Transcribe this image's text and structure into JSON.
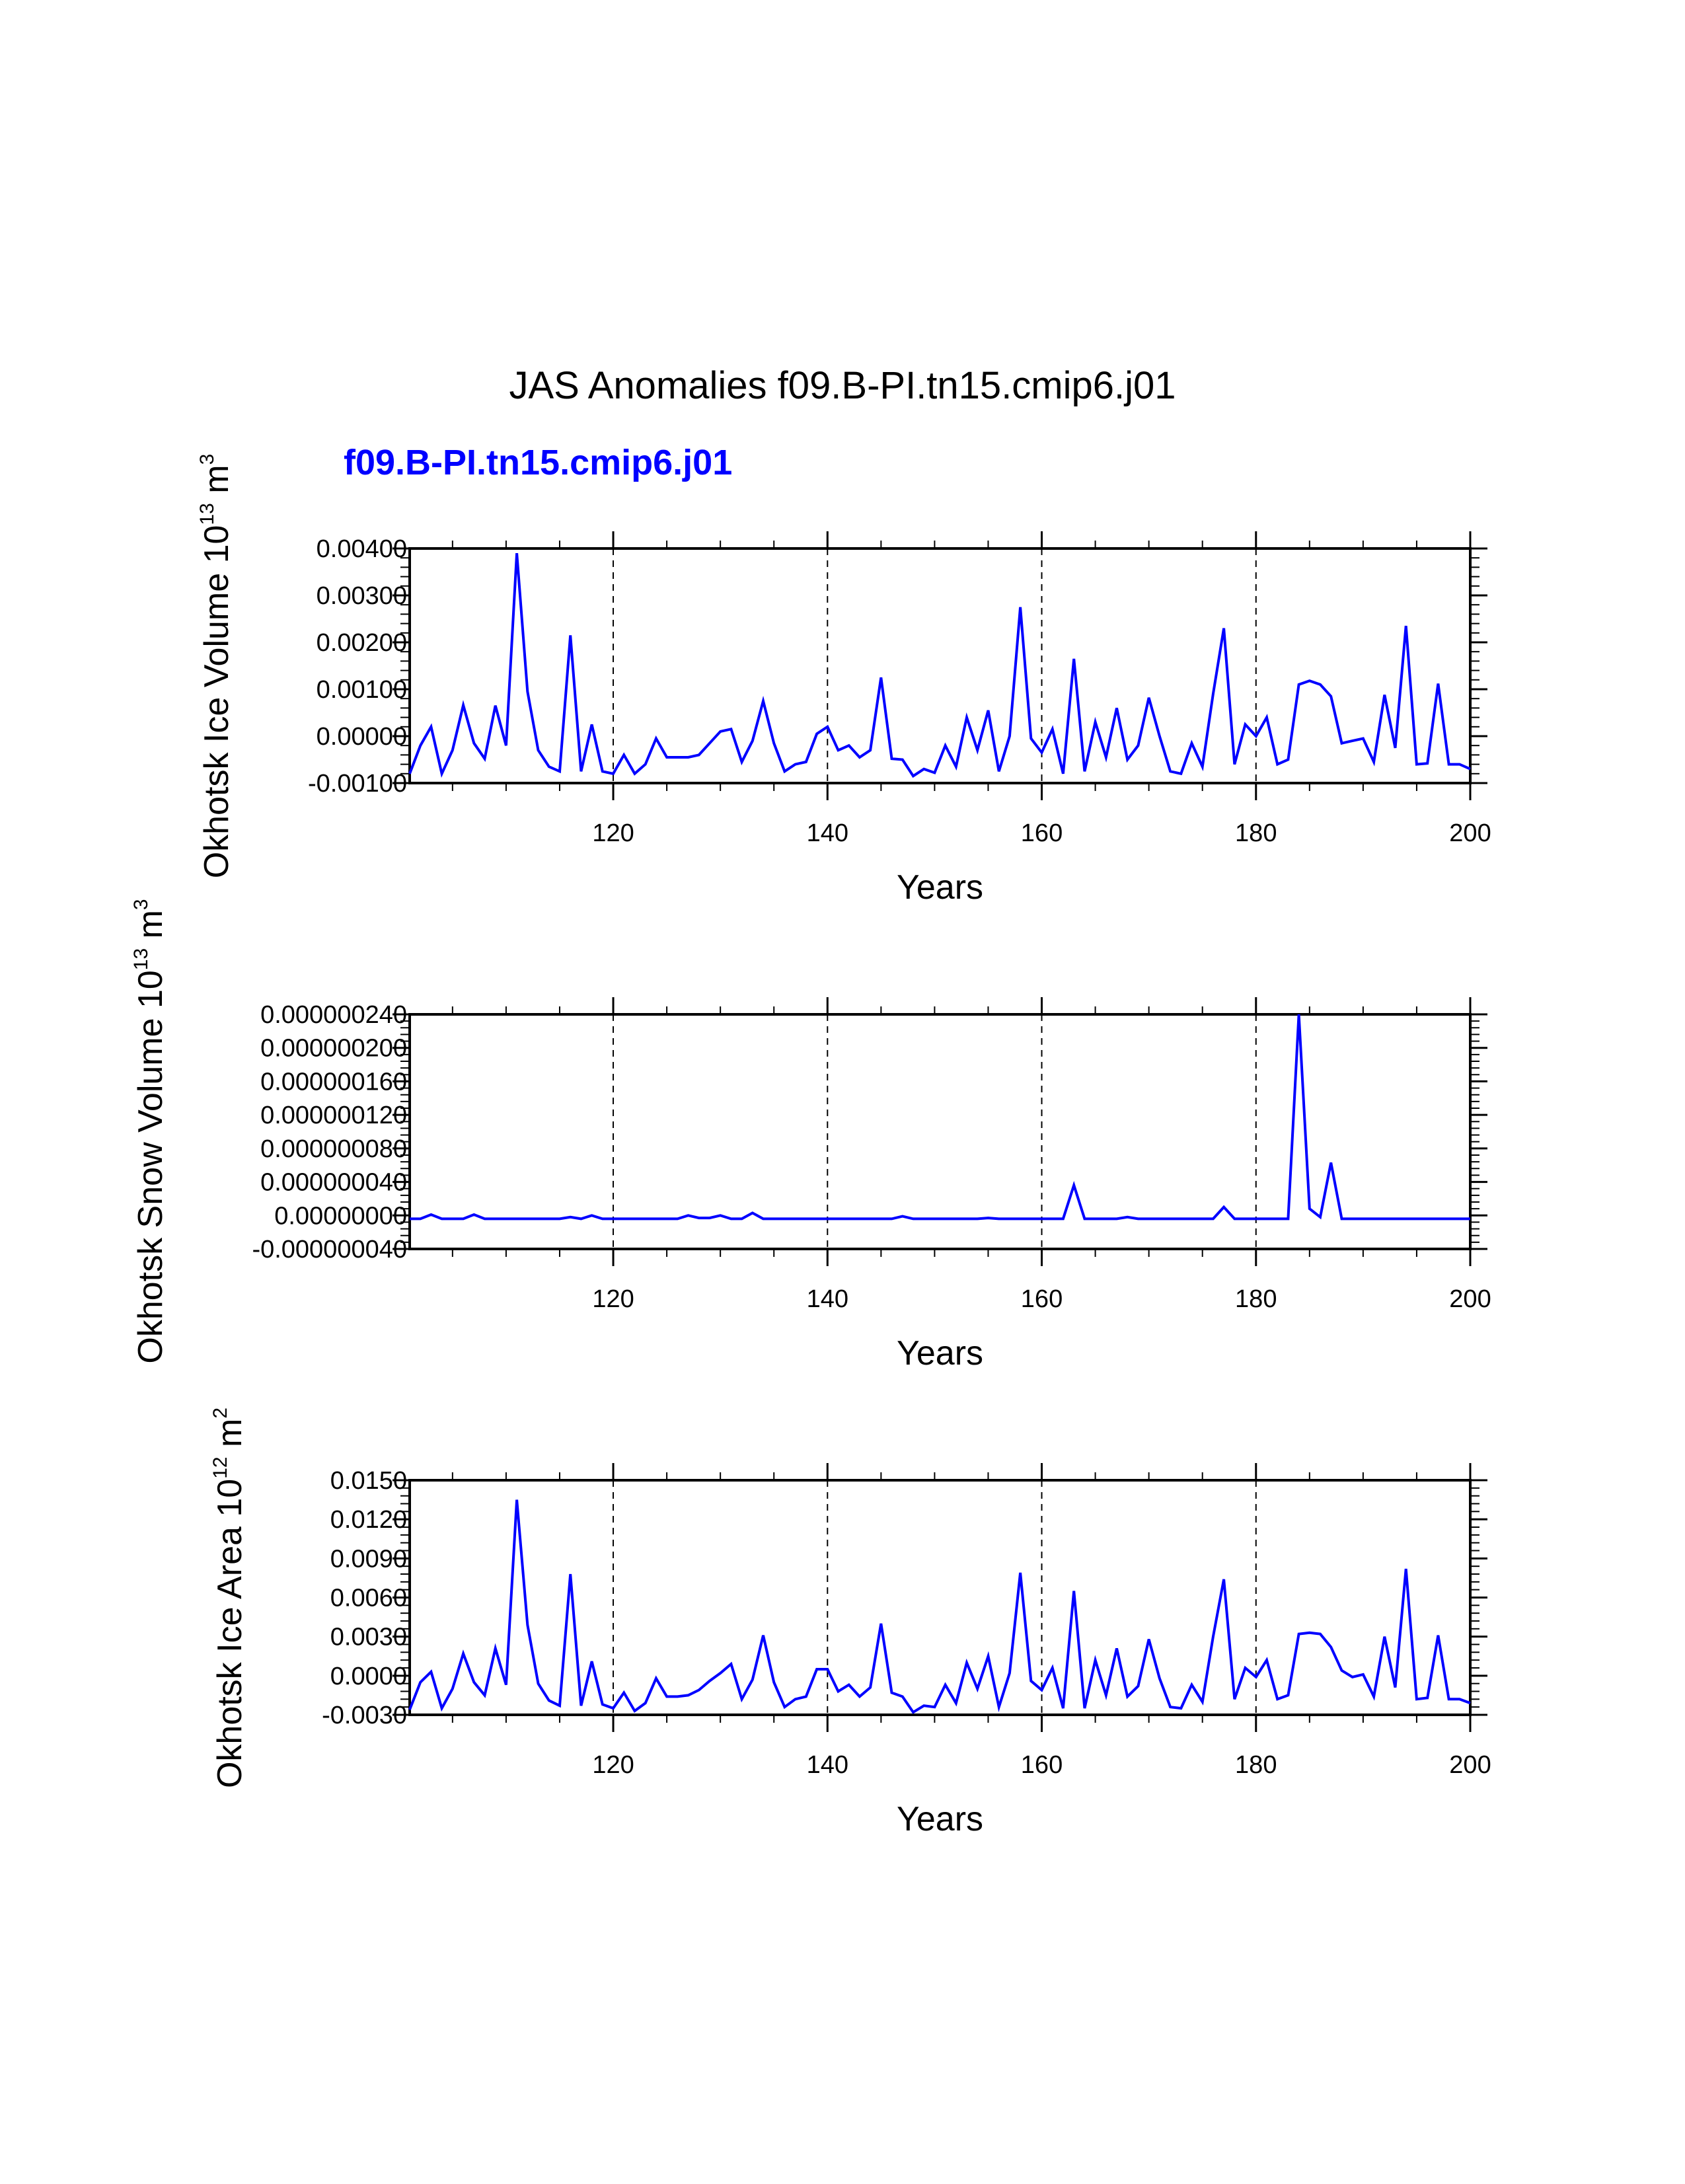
{
  "page_title": "JAS Anomalies f09.B-PI.tn15.cmip6.j01",
  "colors": {
    "series": "#0000ff",
    "axis": "#000000",
    "grid": "#000000",
    "background": "#ffffff"
  },
  "chart_data": [
    {
      "type": "line",
      "title": "f09.B-PI.tn15.cmip6.j01",
      "ylabel": {
        "main": "Okhotsk Ice Volume 10",
        "exp": "13",
        "unit": " m",
        "unit_exp": "3"
      },
      "xlabel": "Years",
      "xlim": [
        101,
        200
      ],
      "ylim": [
        -0.001,
        0.004
      ],
      "yticks": [
        "0.00400",
        "0.00300",
        "0.00200",
        "0.00100",
        "0.00000",
        "-0.00100"
      ],
      "ytick_values": [
        0.004,
        0.003,
        0.002,
        0.001,
        0.0,
        -0.001
      ],
      "xticks": [
        "120",
        "140",
        "160",
        "180",
        "200"
      ],
      "xtick_values": [
        120,
        140,
        160,
        180,
        200
      ],
      "vgrid": [
        120,
        140,
        160,
        180
      ],
      "series": [
        {
          "name": "f09.B-PI.tn15.cmip6.j01",
          "x_start": 101,
          "values": [
            -0.0008,
            -0.0002,
            0.0002,
            -0.0008,
            -0.0003,
            0.00066,
            -0.00015,
            -0.00048,
            0.00065,
            -0.0002,
            0.0039,
            0.00095,
            -0.0003,
            -0.00065,
            -0.00075,
            0.00215,
            -0.00075,
            0.00025,
            -0.00075,
            -0.0008,
            -0.0004,
            -0.0008,
            -0.0006,
            -5e-05,
            -0.00045,
            -0.00045,
            -0.00045,
            -0.0004,
            -0.00015,
            0.0001,
            0.00015,
            -0.00055,
            -0.0001,
            0.00075,
            -0.00015,
            -0.00075,
            -0.0006,
            -0.00055,
            5e-05,
            0.0002,
            -0.0003,
            -0.0002,
            -0.00045,
            -0.0003,
            0.00125,
            -0.00048,
            -0.0005,
            -0.00085,
            -0.0007,
            -0.00078,
            -0.0002,
            -0.00065,
            0.0004,
            -0.0003,
            0.00055,
            -0.00075,
            0.0,
            0.00275,
            -5e-05,
            -0.00035,
            0.00015,
            -0.0008,
            0.00165,
            -0.00075,
            0.0003,
            -0.00045,
            0.0006,
            -0.0005,
            -0.0002,
            0.00082,
            0.0,
            -0.00075,
            -0.0008,
            -0.00015,
            -0.00065,
            0.0009,
            0.0023,
            -0.0006,
            0.00025,
            0.0,
            0.0004,
            -0.0006,
            -0.0005,
            0.0011,
            0.00118,
            0.0011,
            0.00085,
            -0.00015,
            -0.0001,
            -5e-05,
            -0.00055,
            0.00088,
            -0.00025,
            0.00235,
            -0.0006,
            -0.00058,
            0.00112,
            -0.0006,
            -0.0006,
            -0.0007
          ]
        }
      ]
    },
    {
      "type": "line",
      "title": "",
      "ylabel": {
        "main": "Okhotsk Snow Volume 10",
        "exp": "13",
        "unit": " m",
        "unit_exp": "3"
      },
      "xlabel": "Years",
      "xlim": [
        101,
        200
      ],
      "ylim": [
        -4e-08,
        2.4e-07
      ],
      "yticks": [
        "0.000000240",
        "0.000000200",
        "0.000000160",
        "0.000000120",
        "0.000000080",
        "0.000000040",
        "0.00000000",
        "-0.000000040"
      ],
      "ytick_values": [
        2.4e-07,
        2e-07,
        1.6e-07,
        1.2e-07,
        8e-08,
        4e-08,
        0.0,
        -4e-08
      ],
      "xticks": [
        "120",
        "140",
        "160",
        "180",
        "200"
      ],
      "xtick_values": [
        120,
        140,
        160,
        180,
        200
      ],
      "vgrid": [
        120,
        140,
        160,
        180
      ],
      "series": [
        {
          "name": "f09.B-PI.tn15.cmip6.j01",
          "x_start": 101,
          "values": [
            -4e-09,
            -4e-09,
            1e-09,
            -4e-09,
            -4e-09,
            -4e-09,
            1e-09,
            -4e-09,
            -4e-09,
            -4e-09,
            -4e-09,
            -4e-09,
            -4e-09,
            -4e-09,
            -4e-09,
            -2e-09,
            -4e-09,
            0.0,
            -4e-09,
            -4e-09,
            -4e-09,
            -4e-09,
            -4e-09,
            -4e-09,
            -4e-09,
            -4e-09,
            0.0,
            -3e-09,
            -3e-09,
            0.0,
            -4e-09,
            -4e-09,
            3e-09,
            -4e-09,
            -4e-09,
            -4e-09,
            -4e-09,
            -4e-09,
            -4e-09,
            -4e-09,
            -4e-09,
            -4e-09,
            -4e-09,
            -4e-09,
            -4e-09,
            -4e-09,
            -1e-09,
            -4e-09,
            -4e-09,
            -4e-09,
            -4e-09,
            -4e-09,
            -4e-09,
            -4e-09,
            -3e-09,
            -4e-09,
            -4e-09,
            -4e-09,
            -4e-09,
            -4e-09,
            -4e-09,
            -4e-09,
            3.6e-08,
            -4e-09,
            -4e-09,
            -4e-09,
            -4e-09,
            -2e-09,
            -4e-09,
            -4e-09,
            -4e-09,
            -4e-09,
            -4e-09,
            -4e-09,
            -4e-09,
            -4e-09,
            1e-08,
            -4e-09,
            -4e-09,
            -4e-09,
            -4e-09,
            -4e-09,
            -4e-09,
            2.4e-07,
            8e-09,
            -2e-09,
            6.3e-08,
            -4e-09,
            -4e-09,
            -4e-09,
            -4e-09,
            -4e-09,
            -4e-09,
            -4e-09,
            -4e-09,
            -4e-09,
            -4e-09,
            -4e-09,
            -4e-09,
            -4e-09
          ]
        }
      ]
    },
    {
      "type": "line",
      "title": "",
      "ylabel": {
        "main": "Okhotsk Ice Area 10",
        "exp": "12",
        "unit": " m",
        "unit_exp": "2"
      },
      "xlabel": "Years",
      "xlim": [
        101,
        200
      ],
      "ylim": [
        -0.003,
        0.015
      ],
      "yticks": [
        "0.0150",
        "0.0120",
        "0.0090",
        "0.0060",
        "0.0030",
        "0.0000",
        "-0.0030"
      ],
      "ytick_values": [
        0.015,
        0.012,
        0.009,
        0.006,
        0.003,
        0.0,
        -0.003
      ],
      "xticks": [
        "120",
        "140",
        "160",
        "180",
        "200"
      ],
      "xtick_values": [
        120,
        140,
        160,
        180,
        200
      ],
      "vgrid": [
        120,
        140,
        160,
        180
      ],
      "series": [
        {
          "name": "f09.B-PI.tn15.cmip6.j01",
          "x_start": 101,
          "values": [
            -0.0026,
            -0.0005,
            0.0003,
            -0.0025,
            -0.001,
            0.0017,
            -0.0005,
            -0.0015,
            0.0021,
            -0.0007,
            0.0135,
            0.0039,
            -0.0006,
            -0.0019,
            -0.0023,
            0.0078,
            -0.0023,
            0.0011,
            -0.0022,
            -0.0025,
            -0.0013,
            -0.0027,
            -0.0021,
            -0.0002,
            -0.0016,
            -0.0016,
            -0.0015,
            -0.0011,
            -0.0004,
            0.0002,
            0.0009,
            -0.0018,
            -0.0003,
            0.0031,
            -0.0005,
            -0.0024,
            -0.0018,
            -0.0016,
            0.0005,
            0.0005,
            -0.0012,
            -0.0007,
            -0.0016,
            -0.0009,
            0.004,
            -0.0013,
            -0.0016,
            -0.0028,
            -0.0023,
            -0.0024,
            -0.0007,
            -0.0021,
            0.001,
            -0.001,
            0.0015,
            -0.0024,
            0.0002,
            0.0079,
            -0.0004,
            -0.0011,
            0.0006,
            -0.0025,
            0.0065,
            -0.0025,
            0.0012,
            -0.0015,
            0.0021,
            -0.0016,
            -0.0008,
            0.0028,
            -0.0002,
            -0.0024,
            -0.0025,
            -0.0007,
            -0.002,
            0.003,
            0.0074,
            -0.0018,
            0.0006,
            -0.0001,
            0.0012,
            -0.0018,
            -0.0015,
            0.0032,
            0.0033,
            0.0032,
            0.0022,
            0.0004,
            -0.0001,
            0.0001,
            -0.0016,
            0.003,
            -0.0009,
            0.0082,
            -0.0018,
            -0.0017,
            0.0031,
            -0.0018,
            -0.0018,
            -0.0021
          ]
        }
      ]
    }
  ]
}
